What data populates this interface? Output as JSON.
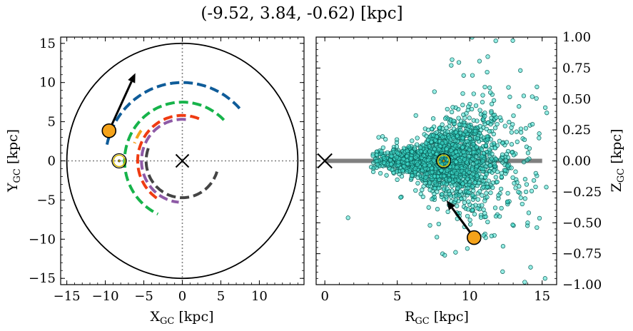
{
  "figure": {
    "title": "(-9.52, 3.84, -0.62) [kpc]"
  },
  "chart_data": [
    {
      "type": "line",
      "panel": "left",
      "xlabel": "X",
      "xlabel_sub": "GC",
      "xlabel_unit": " [kpc]",
      "ylabel": "Y",
      "ylabel_sub": "GC",
      "ylabel_unit": " [kpc]",
      "xlim": [
        -15.8,
        15.8
      ],
      "ylim": [
        -15.8,
        15.8
      ],
      "xticks": [
        -15,
        -10,
        -5,
        0,
        5,
        10
      ],
      "yticks": [
        -15,
        -10,
        -5,
        0,
        5,
        10,
        15
      ],
      "grid": false,
      "boundary_circle_radius": 15,
      "reference_lines": {
        "x": 0,
        "y": 0,
        "style": "dotted",
        "color": "#808080"
      },
      "galactic_center": {
        "x": 0,
        "y": 0,
        "marker": "x"
      },
      "sun": {
        "x": -8.2,
        "y": 0,
        "marker": "sun-symbol",
        "color": "#d4b800"
      },
      "star": {
        "x": -9.52,
        "y": 3.84,
        "color": "#f5a31a",
        "arrow_to": {
          "x": -6.1,
          "y": 11.2
        }
      },
      "arms": [
        {
          "color": "#0f5c99",
          "radius": 10.0,
          "theta_deg": [
            42,
            168
          ]
        },
        {
          "color": "#16b34a",
          "radius": 7.5,
          "theta_deg": [
            44,
            245
          ]
        },
        {
          "color": "#f5a31a",
          "radius": 6.6,
          "theta_deg": [
            144,
            160
          ]
        },
        {
          "color": "#ef3b12",
          "radius": 5.8,
          "theta_deg": [
            68,
            238
          ]
        },
        {
          "color": "#8e5aa6",
          "radius": 5.3,
          "theta_deg": [
            85,
            265
          ]
        },
        {
          "color": "#444444",
          "radius": 4.7,
          "theta_deg": [
            160,
            343
          ]
        }
      ]
    },
    {
      "type": "scatter",
      "panel": "right",
      "xlabel": "R",
      "xlabel_sub": "GC",
      "xlabel_unit": " [kpc]",
      "ylabel": "Z",
      "ylabel_sub": "GC",
      "ylabel_unit": " [kpc]",
      "xlim": [
        -0.6,
        16.0
      ],
      "ylim": [
        -1.0,
        1.0
      ],
      "xticks": [
        0,
        5,
        10,
        15
      ],
      "yticks": [
        -1.0,
        -0.75,
        -0.5,
        -0.25,
        0.0,
        0.25,
        0.5,
        0.75,
        1.0
      ],
      "ytick_labels": [
        "−1.00",
        "−0.75",
        "−0.50",
        "−0.25",
        "0.00",
        "0.25",
        "0.50",
        "0.75",
        "1.00"
      ],
      "yaxis_side": "right",
      "grid": false,
      "disk_line": {
        "x": [
          0,
          15
        ],
        "y": 0,
        "color": "#808080"
      },
      "galactic_center": {
        "x": 0,
        "y": 0,
        "marker": "x"
      },
      "sun": {
        "x": 8.2,
        "y": 0,
        "marker": "sun-symbol",
        "color": "#d4b800"
      },
      "star": {
        "x": 10.3,
        "y": -0.62,
        "color": "#f5a31a",
        "arrow_to": {
          "x": 8.4,
          "y": -0.32
        }
      },
      "points": {
        "color": "#40e0d0",
        "approx_count": 2100,
        "distribution": "dense cluster centred near R=8.2 kpc, Z=0, spreading from R≈1.5 to 15.5 kpc and flaring in |Z| toward larger R",
        "x": [
          1.6,
          3.2,
          4.1,
          5.7,
          6.4,
          7.3,
          8.2,
          9.0,
          9.6,
          10.4,
          11.2,
          12.1,
          12.6,
          13.4,
          14.0,
          14.8,
          11.8,
          13.5,
          12.3,
          14.2,
          10.9,
          13.8,
          15.2
        ],
        "y": [
          -0.46,
          -0.05,
          0.02,
          0.08,
          -0.03,
          0.05,
          0.0,
          0.12,
          -0.1,
          0.24,
          -0.21,
          0.35,
          -0.33,
          0.44,
          -0.5,
          0.22,
          0.97,
          0.73,
          -0.69,
          -0.86,
          0.53,
          -0.98,
          -0.95
        ]
      }
    }
  ]
}
